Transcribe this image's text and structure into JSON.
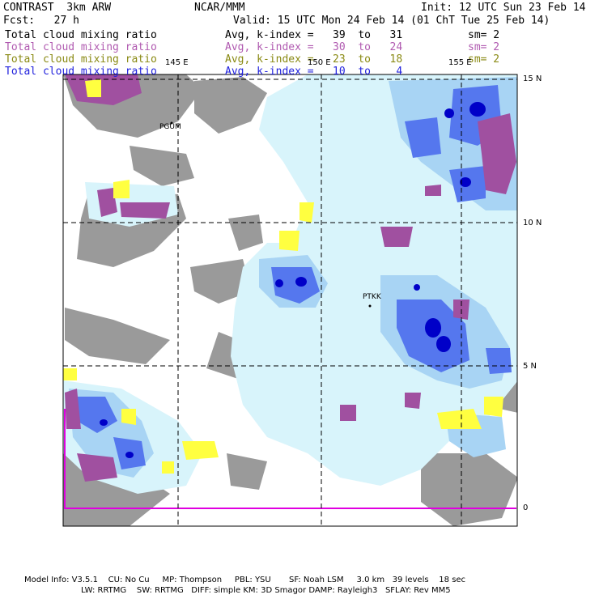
{
  "header": {
    "model": "CONTRAST  3km ARW",
    "center": "NCAR/MMM",
    "init": "Init: 12 UTC Sun 23 Feb 14",
    "fcst": "Fcst:   27 h",
    "valid": "Valid: 15 UTC Mon 24 Feb 14 (01 ChT Tue 25 Feb 14)"
  },
  "fields": [
    {
      "name": "Total cloud mixing ratio",
      "range": "Avg, k-index =   39  to   31",
      "sm": "sm= 2",
      "color": "#000000"
    },
    {
      "name": "Total cloud mixing ratio",
      "range": "Avg, k-index =   30  to   24",
      "sm": "sm= 2",
      "color": "#b05ab0"
    },
    {
      "name": "Total cloud mixing ratio",
      "range": "Avg, k-index =   23  to   18",
      "sm": "sm= 2",
      "color": "#8a8a14"
    },
    {
      "name": "Total cloud mixing ratio",
      "range": "Avg, k-index =   10  to    4",
      "sm": "",
      "color": "#2222dd"
    }
  ],
  "axes": {
    "lon_labels": [
      "145 E",
      "150 E",
      "155 E"
    ],
    "lat_labels": [
      "15 N",
      "10 N",
      "5 N",
      "0"
    ]
  },
  "stations": [
    "PGUM",
    "PTKK"
  ],
  "colors": {
    "land_gray": "#9a9a9a",
    "magenta": "#a050a0",
    "yellow": "#ffff40",
    "light_cyan": "#d8f4fb",
    "light_blue": "#a8d4f4",
    "mid_blue": "#5577ee",
    "dark_blue": "#0000c8",
    "equator_line": "#e000e0"
  },
  "footer": {
    "line1": "Model Info: V3.5.1    CU: No Cu     MP: Thompson     PBL: YSU       SF: Noah LSM     3.0 km   39 levels    18 sec",
    "line2": "LW: RRTMG    SW: RRTMG   DIFF: simple KM: 3D Smagor DAMP: Rayleigh3   SFLAY: Rev MM5"
  }
}
